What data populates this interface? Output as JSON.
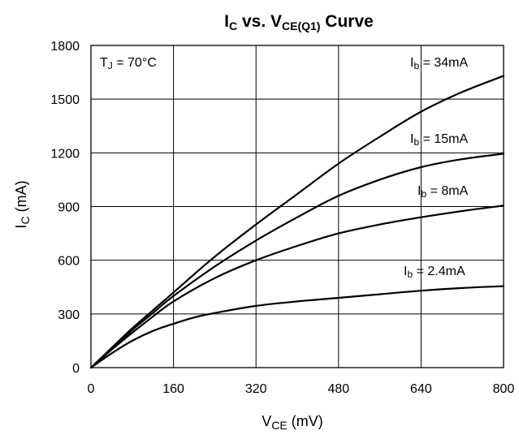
{
  "chart_data": {
    "type": "line",
    "title": {
      "main": "I",
      "main_sub": "C",
      "mid": " vs. V",
      "mid_sub": "CE(Q1)",
      "tail": " Curve"
    },
    "xlabel": {
      "main": "V",
      "sub": "CE",
      "tail": " (mV)"
    },
    "ylabel": {
      "main": "I",
      "sub": "C",
      "tail": " (mA)"
    },
    "xlim": [
      0,
      800
    ],
    "ylim": [
      0,
      1800
    ],
    "xticks": [
      "0",
      "160",
      "320",
      "480",
      "640",
      "800"
    ],
    "yticks": [
      "0",
      "300",
      "600",
      "900",
      "1200",
      "1500",
      "1800"
    ],
    "grid": true,
    "annotation": {
      "main": "T",
      "sub": "J",
      "tail": " = 70°C"
    },
    "series": [
      {
        "name": "I_b = 34mA",
        "label": {
          "main": "I",
          "sub": "b",
          "tail": " = 34mA"
        },
        "x": [
          0,
          40,
          80,
          120,
          160,
          240,
          320,
          400,
          480,
          560,
          640,
          720,
          800
        ],
        "y": [
          0,
          110,
          220,
          320,
          420,
          620,
          800,
          970,
          1140,
          1290,
          1430,
          1540,
          1630
        ]
      },
      {
        "name": "I_b = 15mA",
        "label": {
          "main": "I",
          "sub": "b",
          "tail": " = 15mA"
        },
        "x": [
          0,
          40,
          80,
          120,
          160,
          240,
          320,
          400,
          480,
          560,
          640,
          720,
          800
        ],
        "y": [
          0,
          105,
          210,
          305,
          400,
          565,
          710,
          840,
          960,
          1050,
          1120,
          1165,
          1195
        ]
      },
      {
        "name": "I_b = 8mA",
        "label": {
          "main": "I",
          "sub": "b",
          "tail": " = 8mA"
        },
        "x": [
          0,
          40,
          80,
          120,
          160,
          240,
          320,
          400,
          480,
          560,
          640,
          720,
          800
        ],
        "y": [
          0,
          100,
          195,
          285,
          370,
          500,
          600,
          680,
          750,
          800,
          840,
          875,
          905
        ]
      },
      {
        "name": "I_b = 2.4mA",
        "label": {
          "main": "I",
          "sub": "b",
          "tail": " = 2.4mA"
        },
        "x": [
          0,
          40,
          80,
          120,
          160,
          200,
          240,
          320,
          400,
          480,
          560,
          640,
          720,
          800
        ],
        "y": [
          0,
          80,
          150,
          205,
          245,
          280,
          305,
          345,
          370,
          390,
          410,
          430,
          445,
          455
        ]
      }
    ]
  }
}
